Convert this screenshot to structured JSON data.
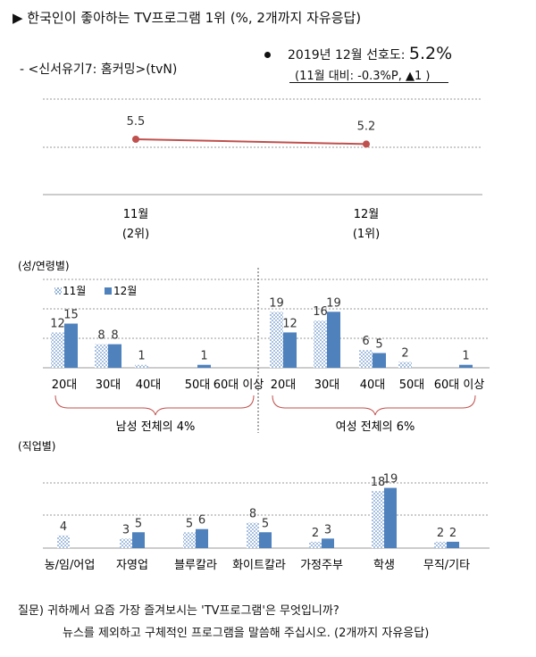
{
  "header": {
    "title": "▶ 한국인이 좋아하는 TV프로그램 1위 (%, 2개까지 자유응답)",
    "program": "- <신서유기7: 홈커밍>(tvN)",
    "pref_prefix": "2019년 12월 선호도: ",
    "pref_value": "5.2%",
    "pref_change": "(11월 대비: -0.3%P,   ▲1 )"
  },
  "chart_data": [
    {
      "type": "line",
      "categories": [
        "11월\n(2위)",
        "12월\n(1위)"
      ],
      "values": [
        5.5,
        5.2
      ],
      "colors": {
        "line": "#c0504d",
        "marker": "#c0504d"
      }
    },
    {
      "type": "bar",
      "title": "(성/연령별)",
      "categories": [
        "20대",
        "30대",
        "40대",
        "50대",
        "60대 이상",
        "20대",
        "30대",
        "40대",
        "50대",
        "60대 이상"
      ],
      "series": [
        {
          "name": "11월",
          "values": [
            12,
            8,
            1,
            null,
            null,
            19,
            16,
            6,
            2,
            null
          ]
        },
        {
          "name": "12월",
          "values": [
            15,
            8,
            null,
            1,
            null,
            12,
            19,
            5,
            null,
            1
          ]
        }
      ],
      "group_labels": [
        "남성 전체의 4%",
        "여성 전체의 6%"
      ],
      "colors": {
        "nov": "#95b3d7",
        "dec": "#4f81bd"
      }
    },
    {
      "type": "bar",
      "title": "(직업별)",
      "categories": [
        "농/임/어업",
        "자영업",
        "블루칼라",
        "화이트칼라",
        "가정주부",
        "학생",
        "무직/기타"
      ],
      "series": [
        {
          "name": "11월",
          "values": [
            4,
            3,
            5,
            8,
            2,
            18,
            2
          ]
        },
        {
          "name": "12월",
          "values": [
            null,
            5,
            6,
            5,
            3,
            19,
            2
          ]
        }
      ]
    }
  ],
  "footer": {
    "question_line1": "질문) 귀하께서 요즘 가장 즐겨보시는 'TV프로그램'은 무엇입니까?",
    "question_line2": "뉴스를 제외하고 구체적인 프로그램을 말씀해 주십시오. (2개까지 자유응답)"
  }
}
